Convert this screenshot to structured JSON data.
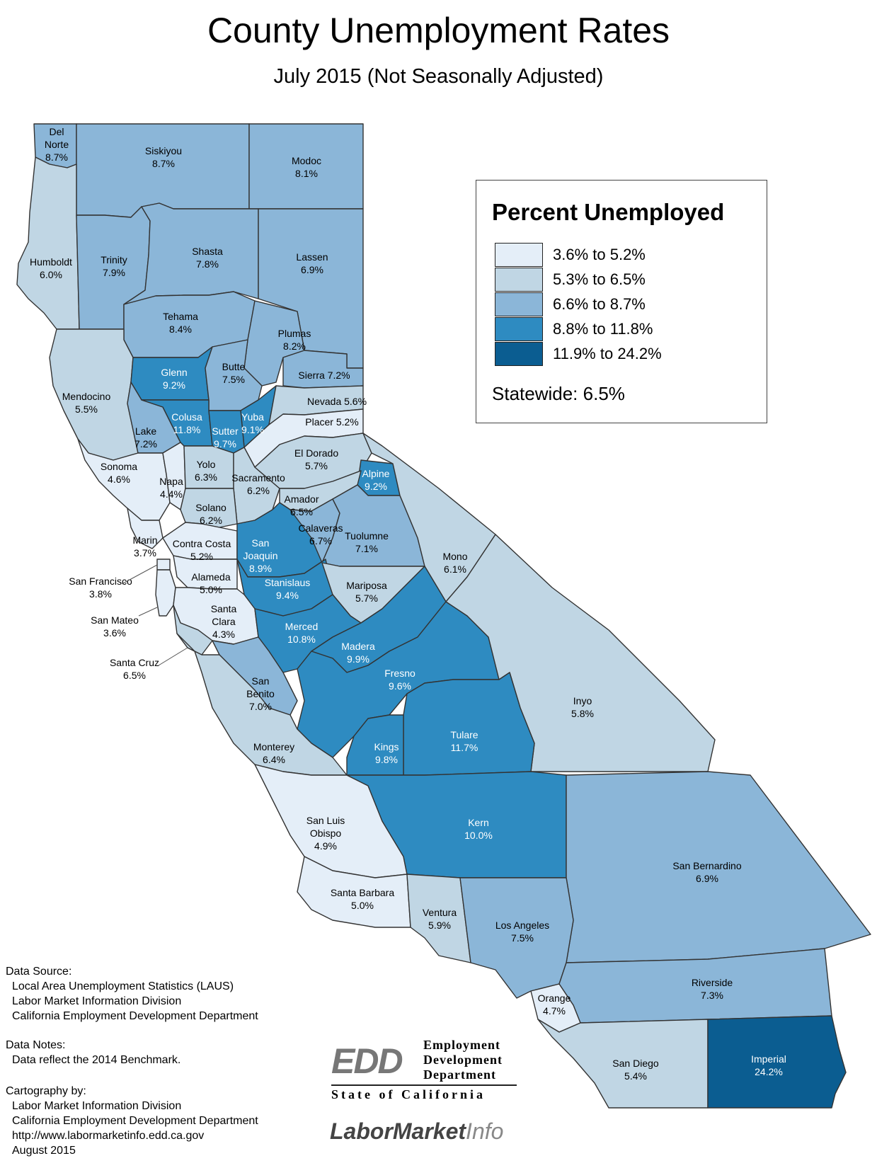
{
  "title": "County Unemployment Rates",
  "subtitle": "July 2015 (Not Seasonally Adjusted)",
  "colors": {
    "class1": "#e4eef8",
    "class2": "#c0d6e4",
    "class3": "#8bb6d8",
    "class4": "#2e8bc1",
    "class5": "#0b5d91",
    "water": "#ffffff",
    "border": "#333333"
  },
  "legend": {
    "title": "Percent Unemployed",
    "classes": [
      {
        "label": "3.6% to 5.2%",
        "color_key": "class1"
      },
      {
        "label": "5.3% to 6.5%",
        "color_key": "class2"
      },
      {
        "label": "6.6% to 8.7%",
        "color_key": "class3"
      },
      {
        "label": "8.8% to 11.8%",
        "color_key": "class4"
      },
      {
        "label": "11.9% to 24.2%",
        "color_key": "class5"
      }
    ],
    "statewide": "Statewide: 6.5%"
  },
  "counties": [
    {
      "name": "Del Norte",
      "rate": "8.7%",
      "value": 8.7
    },
    {
      "name": "Siskiyou",
      "rate": "8.7%",
      "value": 8.7
    },
    {
      "name": "Modoc",
      "rate": "8.1%",
      "value": 8.1
    },
    {
      "name": "Humboldt",
      "rate": "6.0%",
      "value": 6.0
    },
    {
      "name": "Trinity",
      "rate": "7.9%",
      "value": 7.9
    },
    {
      "name": "Shasta",
      "rate": "7.8%",
      "value": 7.8
    },
    {
      "name": "Lassen",
      "rate": "6.9%",
      "value": 6.9
    },
    {
      "name": "Tehama",
      "rate": "8.4%",
      "value": 8.4
    },
    {
      "name": "Plumas",
      "rate": "8.2%",
      "value": 8.2
    },
    {
      "name": "Mendocino",
      "rate": "5.5%",
      "value": 5.5
    },
    {
      "name": "Glenn",
      "rate": "9.2%",
      "value": 9.2
    },
    {
      "name": "Butte",
      "rate": "7.5%",
      "value": 7.5
    },
    {
      "name": "Sierra",
      "rate": "7.2%",
      "value": 7.2
    },
    {
      "name": "Lake",
      "rate": "7.2%",
      "value": 7.2
    },
    {
      "name": "Colusa",
      "rate": "11.8%",
      "value": 11.8
    },
    {
      "name": "Yuba",
      "rate": "9.1%",
      "value": 9.1
    },
    {
      "name": "Sutter",
      "rate": "9.7%",
      "value": 9.7
    },
    {
      "name": "Nevada",
      "rate": "5.6%",
      "value": 5.6
    },
    {
      "name": "Placer",
      "rate": "5.2%",
      "value": 5.2
    },
    {
      "name": "Sonoma",
      "rate": "4.6%",
      "value": 4.6
    },
    {
      "name": "Napa",
      "rate": "4.4%",
      "value": 4.4
    },
    {
      "name": "Yolo",
      "rate": "6.3%",
      "value": 6.3
    },
    {
      "name": "Sacramento",
      "rate": "6.2%",
      "value": 6.2
    },
    {
      "name": "El Dorado",
      "rate": "5.7%",
      "value": 5.7
    },
    {
      "name": "Alpine",
      "rate": "9.2%",
      "value": 9.2
    },
    {
      "name": "Amador",
      "rate": "6.5%",
      "value": 6.5
    },
    {
      "name": "Solano",
      "rate": "6.2%",
      "value": 6.2
    },
    {
      "name": "Marin",
      "rate": "3.7%",
      "value": 3.7
    },
    {
      "name": "Contra Costa",
      "rate": "5.2%",
      "value": 5.2
    },
    {
      "name": "San Joaquin",
      "rate": "8.9%",
      "value": 8.9
    },
    {
      "name": "Calaveras",
      "rate": "6.7%",
      "value": 6.7
    },
    {
      "name": "Tuolumne",
      "rate": "7.1%",
      "value": 7.1
    },
    {
      "name": "Mono",
      "rate": "6.1%",
      "value": 6.1
    },
    {
      "name": "San Francisco",
      "rate": "3.8%",
      "value": 3.8
    },
    {
      "name": "Alameda",
      "rate": "5.0%",
      "value": 5.0
    },
    {
      "name": "Stanislaus",
      "rate": "9.4%",
      "value": 9.4
    },
    {
      "name": "Mariposa",
      "rate": "5.7%",
      "value": 5.7
    },
    {
      "name": "San Mateo",
      "rate": "3.6%",
      "value": 3.6
    },
    {
      "name": "Santa Clara",
      "rate": "4.3%",
      "value": 4.3
    },
    {
      "name": "Merced",
      "rate": "10.8%",
      "value": 10.8
    },
    {
      "name": "Madera",
      "rate": "9.9%",
      "value": 9.9
    },
    {
      "name": "Santa Cruz",
      "rate": "6.5%",
      "value": 6.5
    },
    {
      "name": "San Benito",
      "rate": "7.0%",
      "value": 7.0
    },
    {
      "name": "Fresno",
      "rate": "9.6%",
      "value": 9.6
    },
    {
      "name": "Inyo",
      "rate": "5.8%",
      "value": 5.8
    },
    {
      "name": "Tulare",
      "rate": "11.7%",
      "value": 11.7
    },
    {
      "name": "Kings",
      "rate": "9.8%",
      "value": 9.8
    },
    {
      "name": "Monterey",
      "rate": "6.4%",
      "value": 6.4
    },
    {
      "name": "San Luis Obispo",
      "rate": "4.9%",
      "value": 4.9
    },
    {
      "name": "Kern",
      "rate": "10.0%",
      "value": 10.0
    },
    {
      "name": "San Bernardino",
      "rate": "6.9%",
      "value": 6.9
    },
    {
      "name": "Santa Barbara",
      "rate": "5.0%",
      "value": 5.0
    },
    {
      "name": "Ventura",
      "rate": "5.9%",
      "value": 5.9
    },
    {
      "name": "Los Angeles",
      "rate": "7.5%",
      "value": 7.5
    },
    {
      "name": "Riverside",
      "rate": "7.3%",
      "value": 7.3
    },
    {
      "name": "Orange",
      "rate": "4.7%",
      "value": 4.7
    },
    {
      "name": "San Diego",
      "rate": "5.4%",
      "value": 5.4
    },
    {
      "name": "Imperial",
      "rate": "24.2%",
      "value": 24.2
    }
  ],
  "footer": {
    "data_source_heading": "Data Source:",
    "data_source_lines": [
      "Local Area Unemployment Statistics (LAUS)",
      "Labor Market Information Division",
      "California Employment Development Department"
    ],
    "data_notes_heading": "Data Notes:",
    "data_notes_lines": [
      "Data reflect the 2014 Benchmark."
    ],
    "cartography_heading": "Cartography by:",
    "cartography_lines": [
      "Labor Market Information Division",
      "California Employment Development Department",
      "http://www.labormarketinfo.edd.ca.gov",
      "August 2015"
    ]
  },
  "logos": {
    "edd_abbrev": "EDD",
    "edd_line1": "Employment",
    "edd_line2": "Development",
    "edd_line3": "Department",
    "edd_state": "State of California",
    "lmi_part1": "LaborMarket",
    "lmi_part2": "Info"
  }
}
